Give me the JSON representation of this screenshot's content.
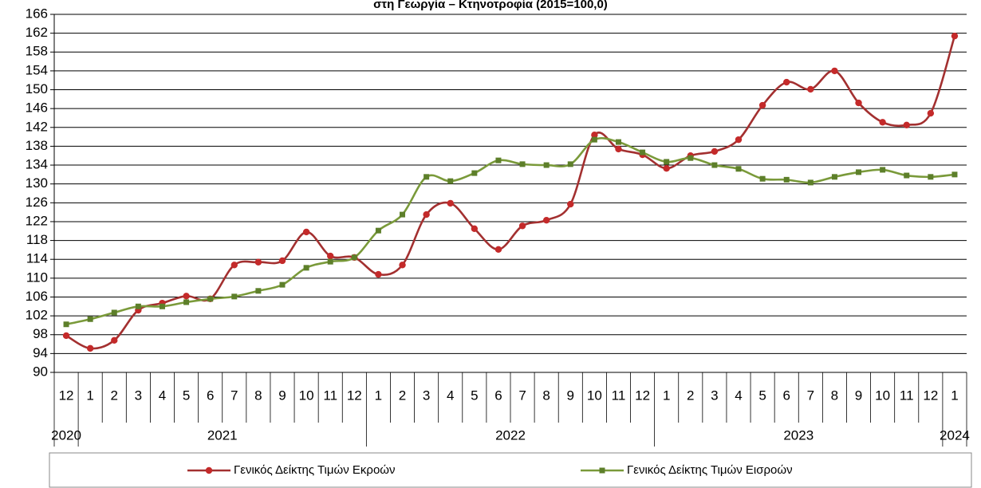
{
  "chart_data": {
    "type": "line",
    "title": "στη Γεωργία – Κτηνοτροφία (2015=100,0)",
    "categories": [
      "12",
      "1",
      "2",
      "3",
      "4",
      "5",
      "6",
      "7",
      "8",
      "9",
      "10",
      "11",
      "12",
      "1",
      "2",
      "3",
      "4",
      "5",
      "6",
      "7",
      "8",
      "9",
      "10",
      "11",
      "12",
      "1",
      "2",
      "3",
      "4",
      "5",
      "6",
      "7",
      "8",
      "9",
      "10",
      "11",
      "12",
      "1"
    ],
    "years": [
      "2020",
      "2021",
      "2022",
      "2023",
      "2024"
    ],
    "series": [
      {
        "name": "Γενικός Δείκτης Τιμών Εκροών",
        "color": "#a33030",
        "marker_color": "#c42a2a",
        "marker": "circle",
        "values": [
          97.8,
          95.1,
          96.8,
          103.2,
          104.7,
          106.2,
          105.6,
          112.8,
          113.4,
          113.7,
          119.8,
          114.7,
          114.4,
          110.8,
          112.8,
          123.5,
          125.9,
          120.5,
          116.1,
          121.1,
          122.3,
          125.7,
          140.4,
          137.4,
          136.2,
          133.3,
          136.0,
          136.9,
          139.4,
          146.7,
          151.6,
          150.1,
          154.0,
          147.2,
          143.1,
          142.5,
          145.0,
          161.4
        ]
      },
      {
        "name": "Γενικός Δείκτης Τιμών Εισροών",
        "color": "#7a9a3a",
        "marker_color": "#5d7f2a",
        "marker": "square",
        "values": [
          100.2,
          101.3,
          102.7,
          104.0,
          104.0,
          104.9,
          105.6,
          106.1,
          107.3,
          108.6,
          112.2,
          113.5,
          114.4,
          120.1,
          123.5,
          131.5,
          130.6,
          132.3,
          135.0,
          134.2,
          134.0,
          134.2,
          139.4,
          138.9,
          136.7,
          134.7,
          135.5,
          134.0,
          133.2,
          131.1,
          130.9,
          130.3,
          131.5,
          132.5,
          133.0,
          131.8,
          131.5,
          132.0
        ]
      }
    ],
    "ylim": [
      90,
      166
    ],
    "yticks": [
      90,
      94,
      98,
      102,
      106,
      110,
      114,
      118,
      122,
      126,
      130,
      134,
      138,
      142,
      146,
      150,
      154,
      158,
      162,
      166
    ],
    "grid": true,
    "smooth": true,
    "legend": "bottom"
  }
}
